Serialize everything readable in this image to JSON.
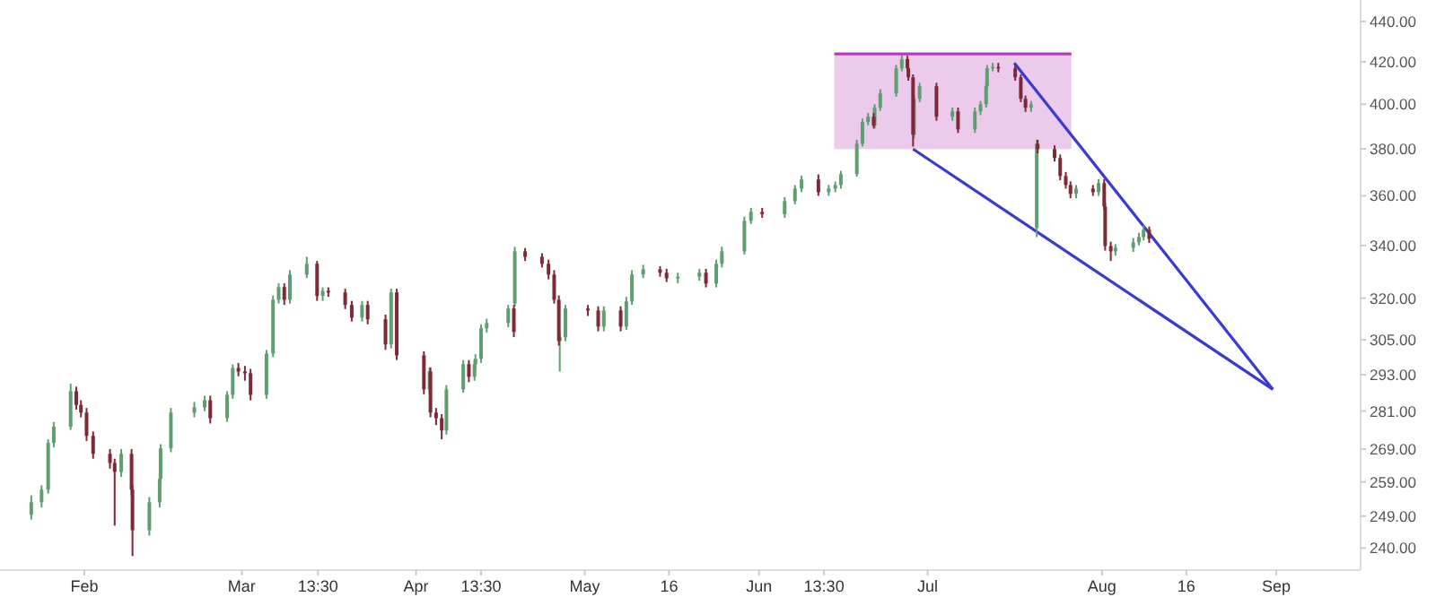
{
  "chart_data": {
    "type": "candlestick",
    "log": true,
    "grid": false,
    "xlim": [
      "--01-17",
      "--09-16"
    ],
    "xticks": [
      {
        "value": "--02-01",
        "label": "Feb"
      },
      {
        "value": "--03-01",
        "label": "Mar"
      },
      {
        "value": "--03-14T13:30",
        "label": "13:30"
      },
      {
        "value": "--04-01",
        "label": "Apr"
      },
      {
        "value": "--04-12T13:30",
        "label": "13:30"
      },
      {
        "value": "--05-01",
        "label": "May"
      },
      {
        "value": "--05-16",
        "label": "16"
      },
      {
        "value": "--06-01",
        "label": "Jun"
      },
      {
        "value": "--06-12T13:30",
        "label": "13:30"
      },
      {
        "value": "--07-01",
        "label": "Jul"
      },
      {
        "value": "--08-01",
        "label": "Aug"
      },
      {
        "value": "--08-16",
        "label": "16"
      },
      {
        "value": "--09-01",
        "label": "Sep"
      }
    ],
    "ylim": [
      234,
      451
    ],
    "yticks": [
      {
        "value": 240,
        "label": "240.00"
      },
      {
        "value": 249,
        "label": "249.00"
      },
      {
        "value": 259,
        "label": "259.00"
      },
      {
        "value": 269,
        "label": "269.00"
      },
      {
        "value": 281,
        "label": "281.00"
      },
      {
        "value": 293,
        "label": "293.00"
      },
      {
        "value": 305,
        "label": "305.00"
      },
      {
        "value": 320,
        "label": "320.00"
      },
      {
        "value": 340,
        "label": "340.00"
      },
      {
        "value": 360,
        "label": "360.00"
      },
      {
        "value": 380,
        "label": "380.00"
      },
      {
        "value": 400,
        "label": "400.00"
      },
      {
        "value": 420,
        "label": "420.00"
      },
      {
        "value": 440,
        "label": "440.00"
      }
    ],
    "series": [
      {
        "type": "line",
        "color": "#b83ab8",
        "x": [
          "--06-14T09:30",
          "--07-26T13:30"
        ],
        "values": [
          423.9,
          423.9
        ],
        "lower": [
          379.9,
          379.9
        ],
        "upper": [
          423.9,
          423.9
        ]
      },
      {
        "type": "candlestick",
        "color": "#5e9e70",
        "x": [
          "--01-22T13:30",
          "--01-24T09:30",
          "--01-25T13:30",
          "--01-26T13:30",
          "--01-29T13:30",
          "--02-07T13:30",
          "--02-12T13:30",
          "--02-14T09:30",
          "--02-14T13:30",
          "--02-16T09:30",
          "--02-20T13:30",
          "--02-22T09:30",
          "--02-26T09:30",
          "--02-27T09:30",
          "--03-05T09:30",
          "--03-06T13:30",
          "--03-07T13:30",
          "--03-09T13:30",
          "--03-12T13:30",
          "--03-15T09:30",
          "--03-22T09:30",
          "--03-27T13:30",
          "--04-03T09:30",
          "--04-06T09:30",
          "--04-09T09:30",
          "--04-11T09:30",
          "--04-11T13:30",
          "--04-12T13:30",
          "--04-13T13:30",
          "--04-17T09:30",
          "--04-18T13:30",
          "--04-26T13:30",
          "--04-27T13:30",
          "--05-04T09:30",
          "--05-08T09:30",
          "--05-09T09:30",
          "--05-11T09:30",
          "--05-17T13:30",
          "--05-21T09:30",
          "--05-24T09:30",
          "--05-25T09:30",
          "--05-29T09:30",
          "--05-30T13:30",
          "--06-05T13:30",
          "--06-07T09:30",
          "--06-08T13:30",
          "--06-13T09:30",
          "--06-14T13:30",
          "--06-15T13:30",
          "--06-18T09:30",
          "--06-19T09:30",
          "--06-20T09:30",
          "--06-21T13:30",
          "--06-22T13:30",
          "--06-25T09:30",
          "--06-26T09:30",
          "--06-28T13:30",
          "--06-29T13:30",
          "--07-05T09:30",
          "--07-09T09:30",
          "--07-10T09:30",
          "--07-11T09:30",
          "--07-11T13:30",
          "--07-12T13:30",
          "--07-19T09:30",
          "--07-20T09:30",
          "--07-27T09:30",
          "--07-31T09:30",
          "--08-03T09:30",
          "--08-06T13:30",
          "--08-07T13:30",
          "--08-08T09:30"
        ],
        "ohlc": [
          [
            249.4,
            255,
            248,
            253.0
          ],
          [
            253.0,
            258,
            251.5,
            256.7
          ],
          [
            256.7,
            272,
            255.5,
            270.9
          ],
          [
            270.9,
            277.5,
            269.5,
            276.0
          ],
          [
            276.0,
            290,
            275,
            287.5
          ],
          [
            262.0,
            269,
            260.5,
            267.5
          ],
          [
            245.0,
            254.5,
            243.5,
            253.0
          ],
          [
            253.0,
            261.5,
            251.5,
            259.9
          ],
          [
            259.9,
            270.5,
            258.5,
            269.2
          ],
          [
            269.2,
            282,
            268,
            280.5
          ],
          [
            280.5,
            284,
            279,
            282.2
          ],
          [
            282.2,
            286,
            281,
            284.5
          ],
          [
            278.7,
            287.5,
            277.5,
            286.3
          ],
          [
            286.3,
            296.5,
            285,
            295.3
          ],
          [
            286.3,
            301.5,
            285,
            300.2
          ],
          [
            300.2,
            321,
            299,
            319.4
          ],
          [
            319.4,
            325.5,
            318,
            324.1
          ],
          [
            319.4,
            330.5,
            318,
            328.8
          ],
          [
            328.8,
            335.6,
            327.5,
            332.9
          ],
          [
            320.8,
            324,
            319,
            322.7
          ],
          [
            312.9,
            319,
            311.5,
            317.5
          ],
          [
            303.4,
            323.5,
            302,
            322.1
          ],
          [
            288.1,
            295.5,
            286.5,
            294.1
          ],
          [
            274.8,
            289.5,
            273.5,
            288.1
          ],
          [
            288.1,
            298,
            287,
            296.6
          ],
          [
            292.3,
            298,
            291,
            296.6
          ],
          [
            296.6,
            300,
            295,
            298.4
          ],
          [
            298.4,
            310.5,
            297,
            309.1
          ],
          [
            309.1,
            312.5,
            307.5,
            311.0
          ],
          [
            311.0,
            317.5,
            309.5,
            316.2
          ],
          [
            318,
            339.5,
            317,
            337.7
          ],
          [
            304.6,
            307.5,
            294.1,
            305.9
          ],
          [
            305.9,
            317.5,
            304.5,
            316.2
          ],
          [
            309.7,
            317,
            308,
            315.5
          ],
          [
            309.7,
            320.5,
            308.5,
            318.8
          ],
          [
            318.8,
            330.5,
            317.5,
            328.8
          ],
          [
            328.8,
            332.5,
            327.5,
            330.8
          ],
          [
            327.4,
            329.5,
            325.5,
            328.0
          ],
          [
            328.0,
            331,
            326.5,
            329.5
          ],
          [
            325.4,
            334.5,
            324,
            332.9
          ],
          [
            332.9,
            339.5,
            331.5,
            337.7
          ],
          [
            337.7,
            351.5,
            336.5,
            349.8
          ],
          [
            349.8,
            355,
            348.5,
            353.4
          ],
          [
            352.5,
            359.5,
            351,
            357.8
          ],
          [
            357.8,
            364.5,
            356.5,
            363.0
          ],
          [
            363.0,
            368.5,
            361.5,
            366.8
          ],
          [
            361.5,
            364.5,
            360,
            363.0
          ],
          [
            363.0,
            366,
            361.5,
            364.5
          ],
          [
            364.5,
            370.5,
            363,
            369.1
          ],
          [
            369.1,
            384,
            368,
            382.2
          ],
          [
            382.2,
            393.5,
            381,
            391.9
          ],
          [
            391.9,
            396,
            390.5,
            394.3
          ],
          [
            390.3,
            400,
            389,
            398.4
          ],
          [
            398.4,
            407,
            397,
            405.0
          ],
          [
            405.0,
            418.5,
            403.5,
            416.9
          ],
          [
            416.9,
            423.5,
            415.5,
            421.3
          ],
          [
            386.2,
            404,
            384.5,
            402.5
          ],
          [
            402.5,
            410,
            401,
            408.4
          ],
          [
            394.3,
            398.5,
            392.5,
            396.7
          ],
          [
            388.6,
            398.5,
            387,
            396.7
          ],
          [
            396.7,
            401.5,
            395,
            400.0
          ],
          [
            400.0,
            410,
            398.5,
            408.4
          ],
          [
            408.4,
            418.5,
            407,
            416.9
          ],
          [
            416.9,
            419.5,
            415.5,
            417.5
          ],
          [
            398.4,
            401.5,
            396.5,
            400.0
          ],
          [
            346.9,
            384,
            343.3,
            382.2
          ],
          [
            360.8,
            364.5,
            359,
            363.0
          ],
          [
            361.5,
            367,
            360,
            365.3
          ],
          [
            337.7,
            340.5,
            336,
            339.1
          ],
          [
            339.1,
            343,
            337.5,
            341.2
          ],
          [
            341.2,
            345,
            340,
            343.3
          ],
          [
            343.3,
            348,
            342,
            346.2
          ]
        ]
      },
      {
        "type": "candlestick",
        "color": "#7d2a36",
        "x": [
          "--01-30T13:30",
          "--01-31T09:30",
          "--02-01T09:30",
          "--02-02T13:30",
          "--02-05T13:30",
          "--02-06T09:30",
          "--02-09T09:30",
          "--02-09T13:30",
          "--02-23T09:30",
          "--02-28T09:30",
          "--03-01T13:30",
          "--03-02T13:30",
          "--03-08T13:30",
          "--03-14T09:30",
          "--03-16T09:30",
          "--03-19T09:30",
          "--03-20T13:30",
          "--03-23T09:30",
          "--03-26T13:30",
          "--03-28T13:30",
          "--04-02T09:30",
          "--04-03T13:30",
          "--04-04T13:30",
          "--04-05T13:30",
          "--04-10T09:30",
          "--04-18T09:30",
          "--04-20T09:30",
          "--04-23T09:30",
          "--04-24T13:30",
          "--04-25T13:30",
          "--04-26T09:30",
          "--05-01T13:30",
          "--05-03T09:30",
          "--05-07T09:30",
          "--05-14T09:30",
          "--05-15T13:30",
          "--05-22T13:30",
          "--06-01T13:30",
          "--06-11T13:30",
          "--06-21T09:30",
          "--06-27T09:30",
          "--06-27T13:30",
          "--06-28T09:30",
          "--07-02T13:30",
          "--07-06T09:30",
          "--07-13T13:30",
          "--07-16T13:30",
          "--07-17T13:30",
          "--07-18T09:30",
          "--07-20T13:30",
          "--07-23T13:30",
          "--07-24T13:30",
          "--07-25T13:30",
          "--07-26T09:30",
          "--07-30T09:30",
          "--08-01T09:30",
          "--08-01T13:30",
          "--08-02T13:30",
          "--08-09T09:30"
        ],
        "ohlc": [
          [
            287.5,
            289,
            281.5,
            283.0
          ],
          [
            283.0,
            284.5,
            279,
            280.5
          ],
          [
            280.5,
            282,
            271.5,
            273.1
          ],
          [
            273.1,
            274.5,
            266,
            267.5
          ],
          [
            267.5,
            269,
            263,
            264.7
          ],
          [
            264.7,
            266,
            246.3,
            262.0
          ],
          [
            267.5,
            269,
            255,
            256.7
          ],
          [
            256.7,
            258,
            237.8,
            245.0
          ],
          [
            284.5,
            286,
            277,
            278.7
          ],
          [
            295.3,
            297,
            292.5,
            294.1
          ],
          [
            294.1,
            296,
            291,
            293.5
          ],
          [
            293.5,
            295,
            284.5,
            286.3
          ],
          [
            324.1,
            325.5,
            317.5,
            319.4
          ],
          [
            332.9,
            334,
            319,
            320.8
          ],
          [
            322.7,
            324,
            320.5,
            322.1
          ],
          [
            322.1,
            323.5,
            316,
            317.5
          ],
          [
            317.5,
            319,
            311.5,
            312.9
          ],
          [
            317.5,
            319,
            310.5,
            312.3
          ],
          [
            312.3,
            314,
            301.5,
            303.4
          ],
          [
            322.1,
            323.5,
            298,
            299.6
          ],
          [
            299.6,
            301,
            286.5,
            288.1
          ],
          [
            294.1,
            295.5,
            279,
            280.5
          ],
          [
            280.5,
            282,
            276.5,
            278.7
          ],
          [
            278.7,
            280,
            272,
            274.8
          ],
          [
            296.6,
            298,
            290.5,
            292.3
          ],
          [
            316.2,
            317.5,
            306,
            307.8
          ],
          [
            337.7,
            339,
            334,
            335.6
          ],
          [
            335.6,
            337,
            331.5,
            332.9
          ],
          [
            332.9,
            334.5,
            327,
            328.8
          ],
          [
            328.8,
            330.5,
            318,
            319.4
          ],
          [
            319.4,
            321,
            303,
            304.6
          ],
          [
            316.2,
            317.5,
            313.5,
            315.5
          ],
          [
            315.5,
            317,
            308,
            309.7
          ],
          [
            315.5,
            317,
            308,
            309.7
          ],
          [
            330.8,
            332,
            328,
            329.5
          ],
          [
            329.5,
            331,
            326,
            327.4
          ],
          [
            329.5,
            331,
            324,
            325.4
          ],
          [
            353.4,
            355,
            351,
            352.5
          ],
          [
            366.8,
            369,
            360,
            361.5
          ],
          [
            394.3,
            396,
            389,
            390.3
          ],
          [
            421.3,
            423,
            415.5,
            416.9
          ],
          [
            416.9,
            418.5,
            411,
            412.6
          ],
          [
            412.6,
            414,
            381,
            386.2
          ],
          [
            408.4,
            410,
            392.5,
            394.3
          ],
          [
            396.7,
            398.5,
            387,
            388.6
          ],
          [
            417.5,
            419.5,
            415,
            416.9
          ],
          [
            416.9,
            418.5,
            411,
            412.6
          ],
          [
            412.6,
            414,
            401,
            402.5
          ],
          [
            402.5,
            404,
            396.5,
            398.4
          ],
          [
            382.2,
            384,
            378,
            379.9
          ],
          [
            379.9,
            381.5,
            374.5,
            376.0
          ],
          [
            376.0,
            377.5,
            366.5,
            368.3
          ],
          [
            368.3,
            370,
            363,
            364.5
          ],
          [
            364.5,
            366,
            359,
            360.8
          ],
          [
            363.0,
            364.5,
            360,
            361.5
          ],
          [
            365.3,
            367,
            354,
            355.6
          ],
          [
            355.6,
            357,
            338,
            339.8
          ],
          [
            339.8,
            341.5,
            334,
            337.7
          ],
          [
            346.2,
            347.5,
            341,
            342.6
          ]
        ]
      },
      {
        "type": "line",
        "color": "#3a3ad0",
        "x": [
          "--07-16T09:30",
          "--08-31T09:30"
        ],
        "values": [
          419.5,
          288.1
        ]
      },
      {
        "type": "line",
        "color": "#3a3ad0",
        "x": [
          "--06-28T09:30",
          "--08-31T09:30"
        ],
        "values": [
          379.9,
          288.1
        ]
      }
    ]
  }
}
